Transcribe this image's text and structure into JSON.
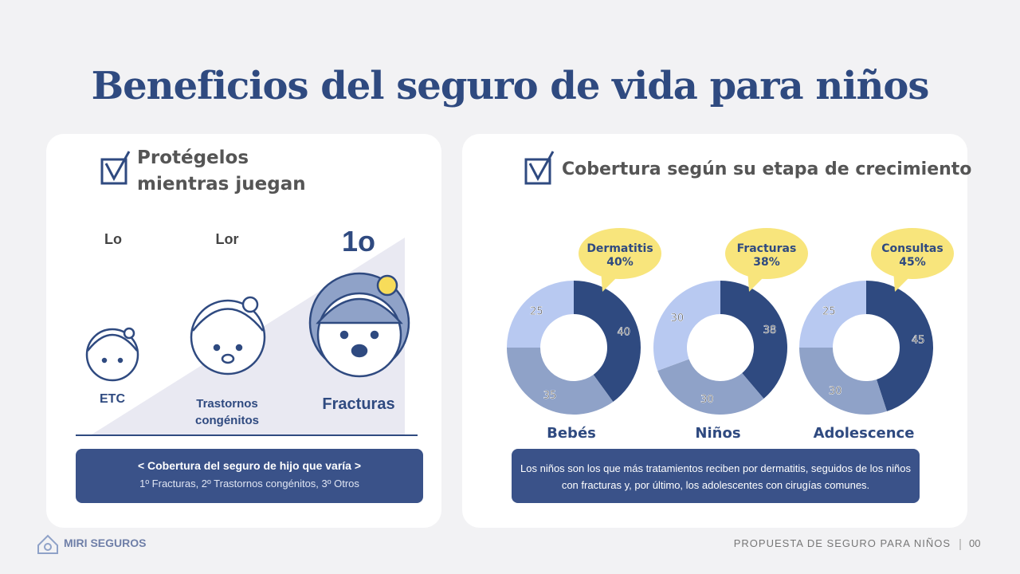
{
  "title": "Beneficios del seguro de vida para niños",
  "left_panel": {
    "heading": "Protégelos mientras juegan",
    "ranks": [
      {
        "rank": "Lo",
        "label": "ETC"
      },
      {
        "rank": "Lor",
        "label": "Trastornos congénitos"
      },
      {
        "rank": "1o",
        "label": "Fracturas"
      }
    ],
    "box_title": "< Cobertura del seguro de hijo que varía >",
    "box_text": "1º Fracturas, 2º Trastornos congénitos, 3º Otros"
  },
  "right_panel": {
    "heading": "Cobertura según su etapa de crecimiento",
    "note": "Los niños son los que más tratamientos reciben por dermatitis, seguidos de los niños con fracturas y, por último, los adolescentes con cirugías comunes."
  },
  "chart_data": [
    {
      "type": "pie",
      "donut": true,
      "title": "Bebés",
      "values": [
        40,
        35,
        25
      ],
      "colors": [
        "#2f4a80",
        "#8fa2c8",
        "#b8c9f1"
      ],
      "annotation": {
        "text": "Dermatitis",
        "value": "40%"
      }
    },
    {
      "type": "pie",
      "donut": true,
      "title": "Niños",
      "values": [
        38,
        30,
        30
      ],
      "colors": [
        "#2f4a80",
        "#8fa2c8",
        "#b8c9f1"
      ],
      "annotation": {
        "text": "Fracturas",
        "value": "38%"
      }
    },
    {
      "type": "pie",
      "donut": true,
      "title": "Adolescence",
      "values": [
        45,
        30,
        25
      ],
      "colors": [
        "#2f4a80",
        "#8fa2c8",
        "#b8c9f1"
      ],
      "annotation": {
        "text": "Consultas",
        "value": "45%"
      }
    }
  ],
  "footer": {
    "brand": "MIRI SEGUROS",
    "caption": "PROPUESTA DE SEGURO PARA NIÑOS",
    "page": "00"
  }
}
